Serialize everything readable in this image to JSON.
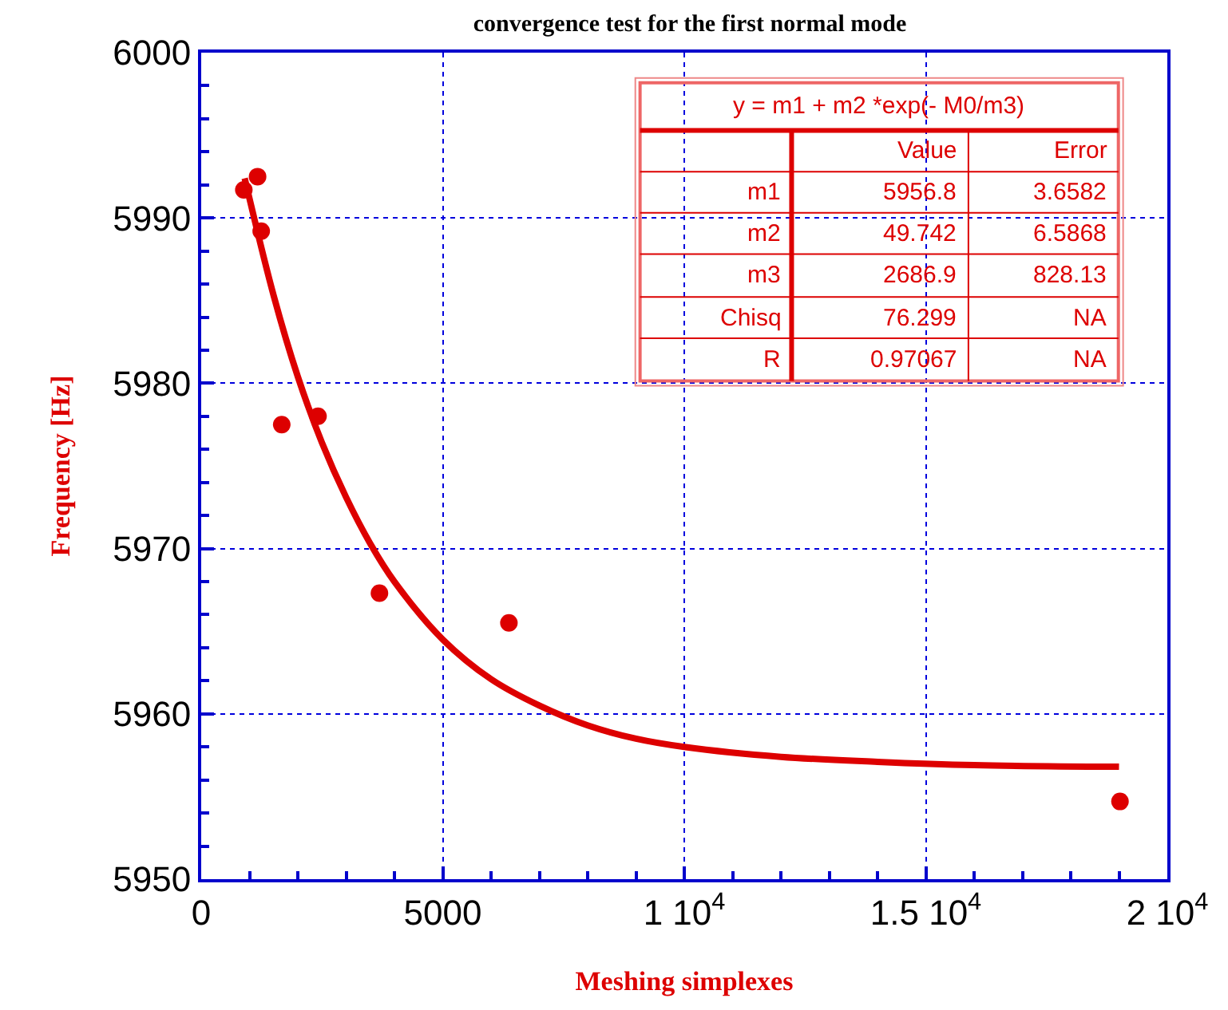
{
  "chart_data": {
    "type": "scatter",
    "title": "convergence test for the first normal mode",
    "xlabel": "Meshing simplexes",
    "ylabel": "Frequency [Hz]",
    "series": [
      {
        "marker": "circle",
        "color": "#dd0000",
        "x": [
          882,
          1167,
          1242,
          1667,
          2418,
          3690,
          6370,
          19020
        ],
        "values": [
          5991.7,
          5992.5,
          5989.2,
          5977.5,
          5978.0,
          5967.3,
          5965.5,
          5954.7
        ]
      },
      {
        "type": "line",
        "color": "#dd0000",
        "x": [
          900,
          1500,
          2000,
          2500,
          3000,
          3500,
          4000,
          5000,
          6000,
          7000,
          8000,
          9000,
          10000,
          12000,
          14000,
          16000,
          19000
        ],
        "values": [
          5992.4,
          5985.3,
          5980.4,
          5976.4,
          5973.1,
          5970.3,
          5968.0,
          5964.5,
          5962.1,
          5960.5,
          5959.3,
          5958.5,
          5958.0,
          5957.4,
          5957.1,
          5956.9,
          5956.8
        ]
      }
    ],
    "xlim": [
      0,
      20000
    ],
    "xticks": [
      0,
      5000,
      {
        "value": 10000,
        "label": "1 10$^{4}$"
      },
      {
        "value": 15000,
        "label": "1.5 10$^{4}$"
      },
      {
        "value": 20000,
        "label": "2 10$^{4}$"
      }
    ],
    "ylim": [
      5950,
      6000
    ],
    "yticks": [
      5950,
      5960,
      5970,
      5980,
      5990,
      6000
    ],
    "grid": true,
    "line_style": "solid",
    "annotations": [
      "y = m1 + m2 *exp(- M0/m3)",
      "Value",
      "Error",
      "m1",
      "5956.8",
      "3.6582",
      "m2",
      "49.742",
      "6.5868",
      "m3",
      "2686.9",
      "828.13",
      "Chisq",
      "76.299",
      "NA",
      "R",
      "0.97067",
      "NA"
    ]
  }
}
